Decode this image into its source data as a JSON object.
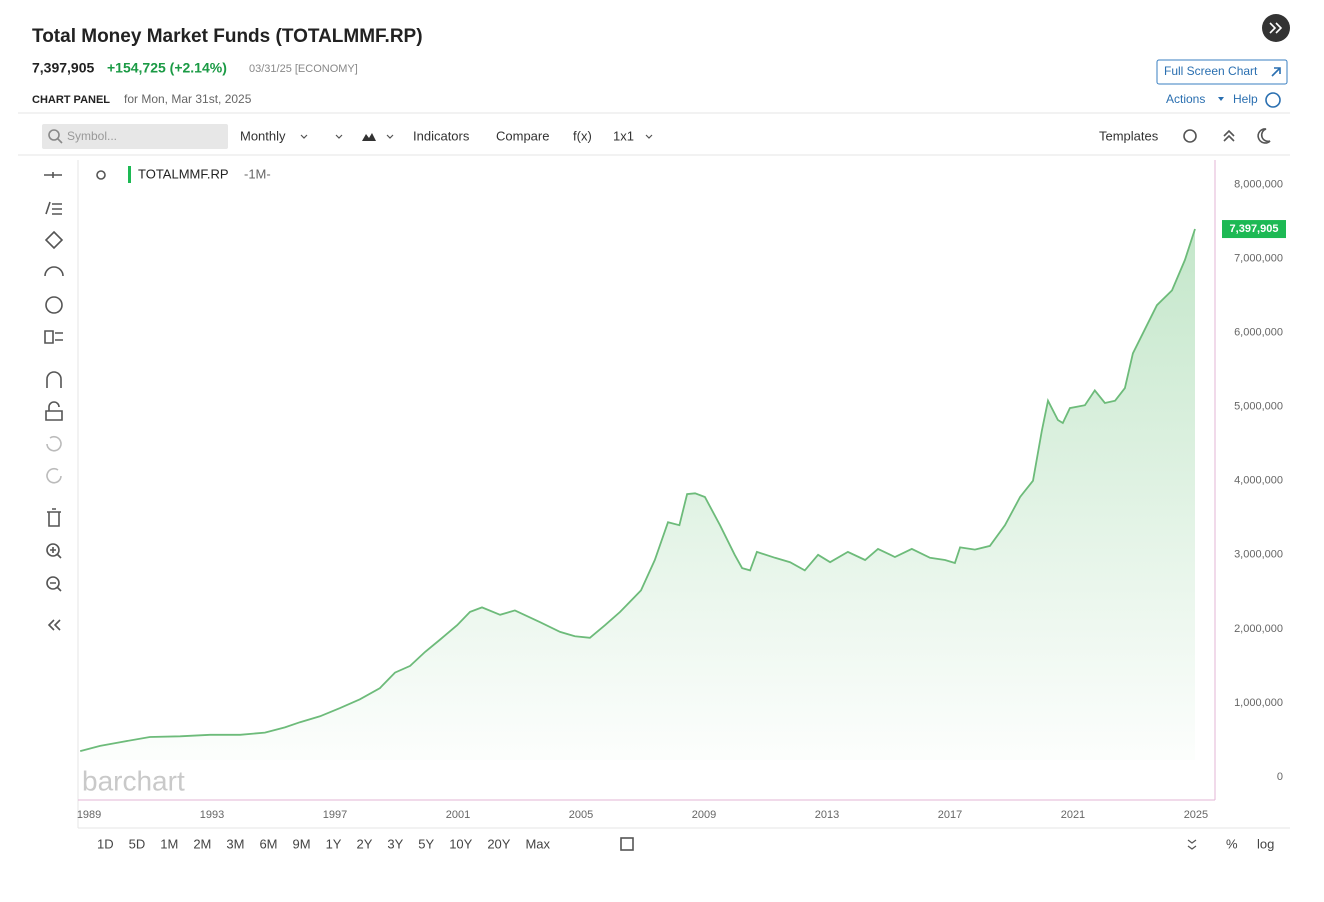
{
  "header": {
    "title": "Total Money Market Funds (TOTALMMF.RP)",
    "price": "7,397,905",
    "change": "+154,725 (+2.14%)",
    "date": "03/31/25 [ECONOMY]",
    "panel_label": "CHART PANEL",
    "panel_date": "for Mon, Mar 31st, 2025",
    "full_screen": "Full Screen Chart",
    "actions": "Actions",
    "help": "Help"
  },
  "toolbar": {
    "symbol_placeholder": "Symbol...",
    "interval": "Monthly",
    "indicators": "Indicators",
    "compare": "Compare",
    "fx": "f(x)",
    "layout": "1x1",
    "templates": "Templates"
  },
  "chart_data": {
    "type": "line",
    "legend_period": "-1M-",
    "watermark": "barchart",
    "x": [
      1988.71,
      1989.36,
      1990.01,
      1990.98,
      1991.96,
      1992.93,
      1993.91,
      1994.72,
      1995.37,
      1995.86,
      1996.51,
      1997.16,
      1997.81,
      1998.46,
      1998.95,
      1999.44,
      1999.93,
      2000.4,
      2000.97,
      2001.39,
      2001.78,
      2002.37,
      2002.85,
      2003.67,
      2004.32,
      2004.8,
      2005.29,
      2005.78,
      2006.27,
      2006.95,
      2007.4,
      2007.83,
      2008.2,
      2008.45,
      2008.71,
      2009.03,
      2009.52,
      2010.0,
      2010.24,
      2010.5,
      2010.72,
      2011.31,
      2011.8,
      2012.28,
      2012.71,
      2013.1,
      2013.68,
      2014.24,
      2014.66,
      2015.21,
      2015.76,
      2016.35,
      2016.84,
      2017.16,
      2017.33,
      2017.81,
      2018.3,
      2018.79,
      2019.28,
      2019.7,
      2019.99,
      2020.19,
      2020.51,
      2020.67,
      2020.9,
      2021.39,
      2021.71,
      2022.04,
      2022.37,
      2022.69,
      2022.95,
      2023.73,
      2024.22,
      2024.64,
      2024.97
    ],
    "series": [
      {
        "name": "TOTALMMF.RP",
        "color": "#6dbb7a",
        "values": [
          350000,
          420000,
          470000,
          540000,
          550000,
          570000,
          570000,
          600000,
          670000,
          740000,
          820000,
          930000,
          1050000,
          1200000,
          1410000,
          1500000,
          1690000,
          1850000,
          2050000,
          2230000,
          2290000,
          2190000,
          2250000,
          2090000,
          1960000,
          1900000,
          1880000,
          2050000,
          2230000,
          2520000,
          2930000,
          3440000,
          3400000,
          3820000,
          3830000,
          3780000,
          3400000,
          3000000,
          2820000,
          2790000,
          3040000,
          2960000,
          2900000,
          2790000,
          3000000,
          2900000,
          3040000,
          2930000,
          3080000,
          2970000,
          3080000,
          2960000,
          2930000,
          2890000,
          3100000,
          3070000,
          3120000,
          3400000,
          3780000,
          4000000,
          4680000,
          5080000,
          4820000,
          4780000,
          4980000,
          5020000,
          5220000,
          5050000,
          5080000,
          5250000,
          5720000,
          6370000,
          6570000,
          6980000,
          7397905
        ]
      }
    ],
    "current": {
      "value": 7397905,
      "label": "7,397,905",
      "color": "#1db954"
    },
    "xlim": [
      1988.64,
      2025.62
    ],
    "xticks": [
      1989,
      1993,
      1997,
      2001,
      2005,
      2009,
      2013,
      2017,
      2021,
      2025
    ],
    "ylim": [
      -310000,
      8330000
    ],
    "yticks": [
      0,
      {
        "value": 1000000,
        "label": "1,000,000"
      },
      {
        "value": 2000000,
        "label": "2,000,000"
      },
      {
        "value": 3000000,
        "label": "3,000,000"
      },
      {
        "value": 4000000,
        "label": "4,000,000"
      },
      {
        "value": 5000000,
        "label": "5,000,000"
      },
      {
        "value": 6000000,
        "label": "6,000,000"
      },
      {
        "value": 7000000,
        "label": "7,000,000"
      },
      {
        "value": 8000000,
        "label": "8,000,000"
      }
    ],
    "grid": false
  },
  "range_buttons": [
    "1D",
    "5D",
    "1M",
    "2M",
    "3M",
    "6M",
    "9M",
    "1Y",
    "2Y",
    "3Y",
    "5Y",
    "10Y",
    "20Y",
    "Max"
  ],
  "scale_buttons": [
    "%",
    "log"
  ]
}
